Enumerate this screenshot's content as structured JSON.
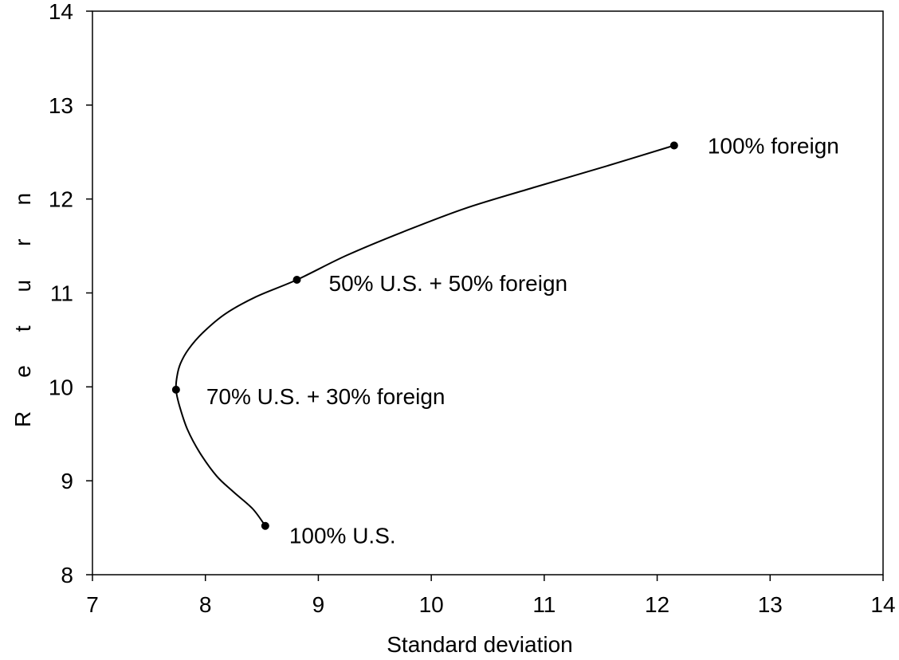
{
  "chart_data": {
    "type": "line",
    "title": "",
    "xlabel": "Standard deviation",
    "ylabel": "Return",
    "xlim": [
      7,
      14
    ],
    "ylim": [
      8,
      14
    ],
    "xticks": [
      7,
      8,
      9,
      10,
      11,
      12,
      13,
      14
    ],
    "yticks": [
      8,
      9,
      10,
      11,
      12,
      13,
      14
    ],
    "grid": false,
    "legend": "none",
    "line_color": "#000000",
    "series": [
      {
        "x": [
          8.53,
          8.42,
          8.25,
          8.1,
          7.95,
          7.84,
          7.77,
          7.74,
          7.75,
          7.78,
          7.85,
          7.98,
          8.18,
          8.45,
          8.81,
          9.25,
          9.75,
          10.3,
          10.9,
          11.55,
          12.15
        ],
        "y": [
          8.52,
          8.7,
          8.88,
          9.05,
          9.3,
          9.55,
          9.8,
          9.97,
          10.12,
          10.25,
          10.4,
          10.58,
          10.78,
          10.96,
          11.14,
          11.4,
          11.65,
          11.9,
          12.12,
          12.35,
          12.57
        ]
      }
    ],
    "annotations": [
      {
        "label": "100% U.S.",
        "x": 8.53,
        "y": 8.52
      },
      {
        "label": "70% U.S. + 30% foreign",
        "x": 7.74,
        "y": 9.97
      },
      {
        "label": "50% U.S. + 50% foreign",
        "x": 8.81,
        "y": 11.14
      },
      {
        "label": "100% foreign",
        "x": 12.15,
        "y": 12.57
      }
    ]
  }
}
